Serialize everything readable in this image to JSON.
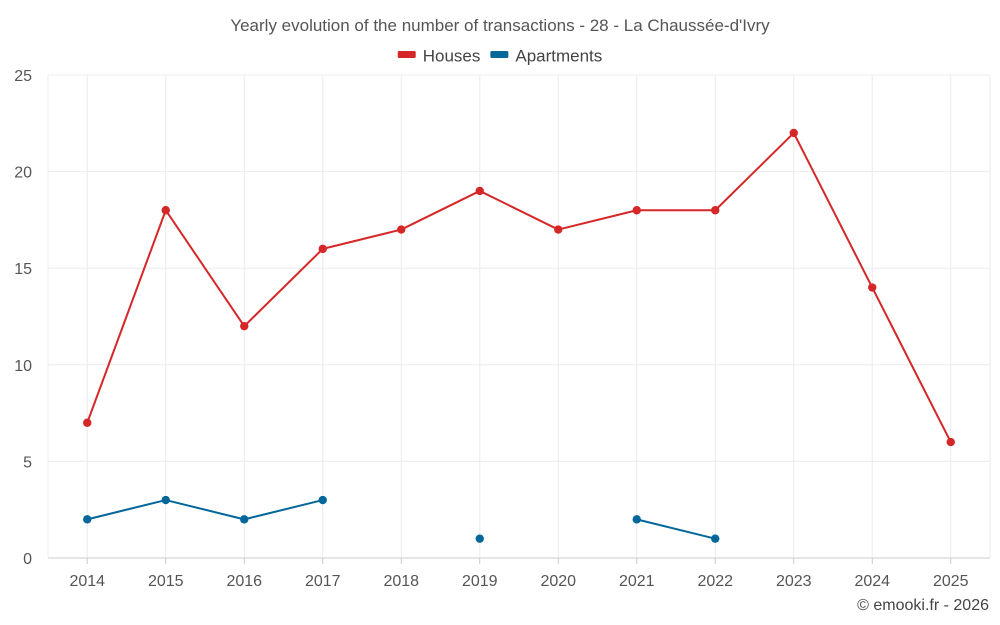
{
  "chart_data": {
    "type": "line",
    "title": "Yearly evolution of the number of transactions - 28 - La Chaussée-d'Ivry",
    "xlabel": "",
    "ylabel": "",
    "ylim": [
      0,
      25
    ],
    "yticks": [
      0,
      5,
      10,
      15,
      20,
      25
    ],
    "categories": [
      "2014",
      "2015",
      "2016",
      "2017",
      "2018",
      "2019",
      "2020",
      "2021",
      "2022",
      "2023",
      "2024",
      "2025"
    ],
    "grid": true,
    "legend_position": "top-center",
    "series": [
      {
        "name": "Houses",
        "color": "#d62728",
        "values": [
          7,
          18,
          12,
          16,
          17,
          19,
          17,
          18,
          18,
          22,
          14,
          6
        ]
      },
      {
        "name": "Apartments",
        "color": "#03679a",
        "values": [
          2,
          3,
          2,
          3,
          null,
          1,
          null,
          2,
          1,
          null,
          null,
          null
        ]
      }
    ]
  },
  "credit": "© emooki.fr - 2026"
}
